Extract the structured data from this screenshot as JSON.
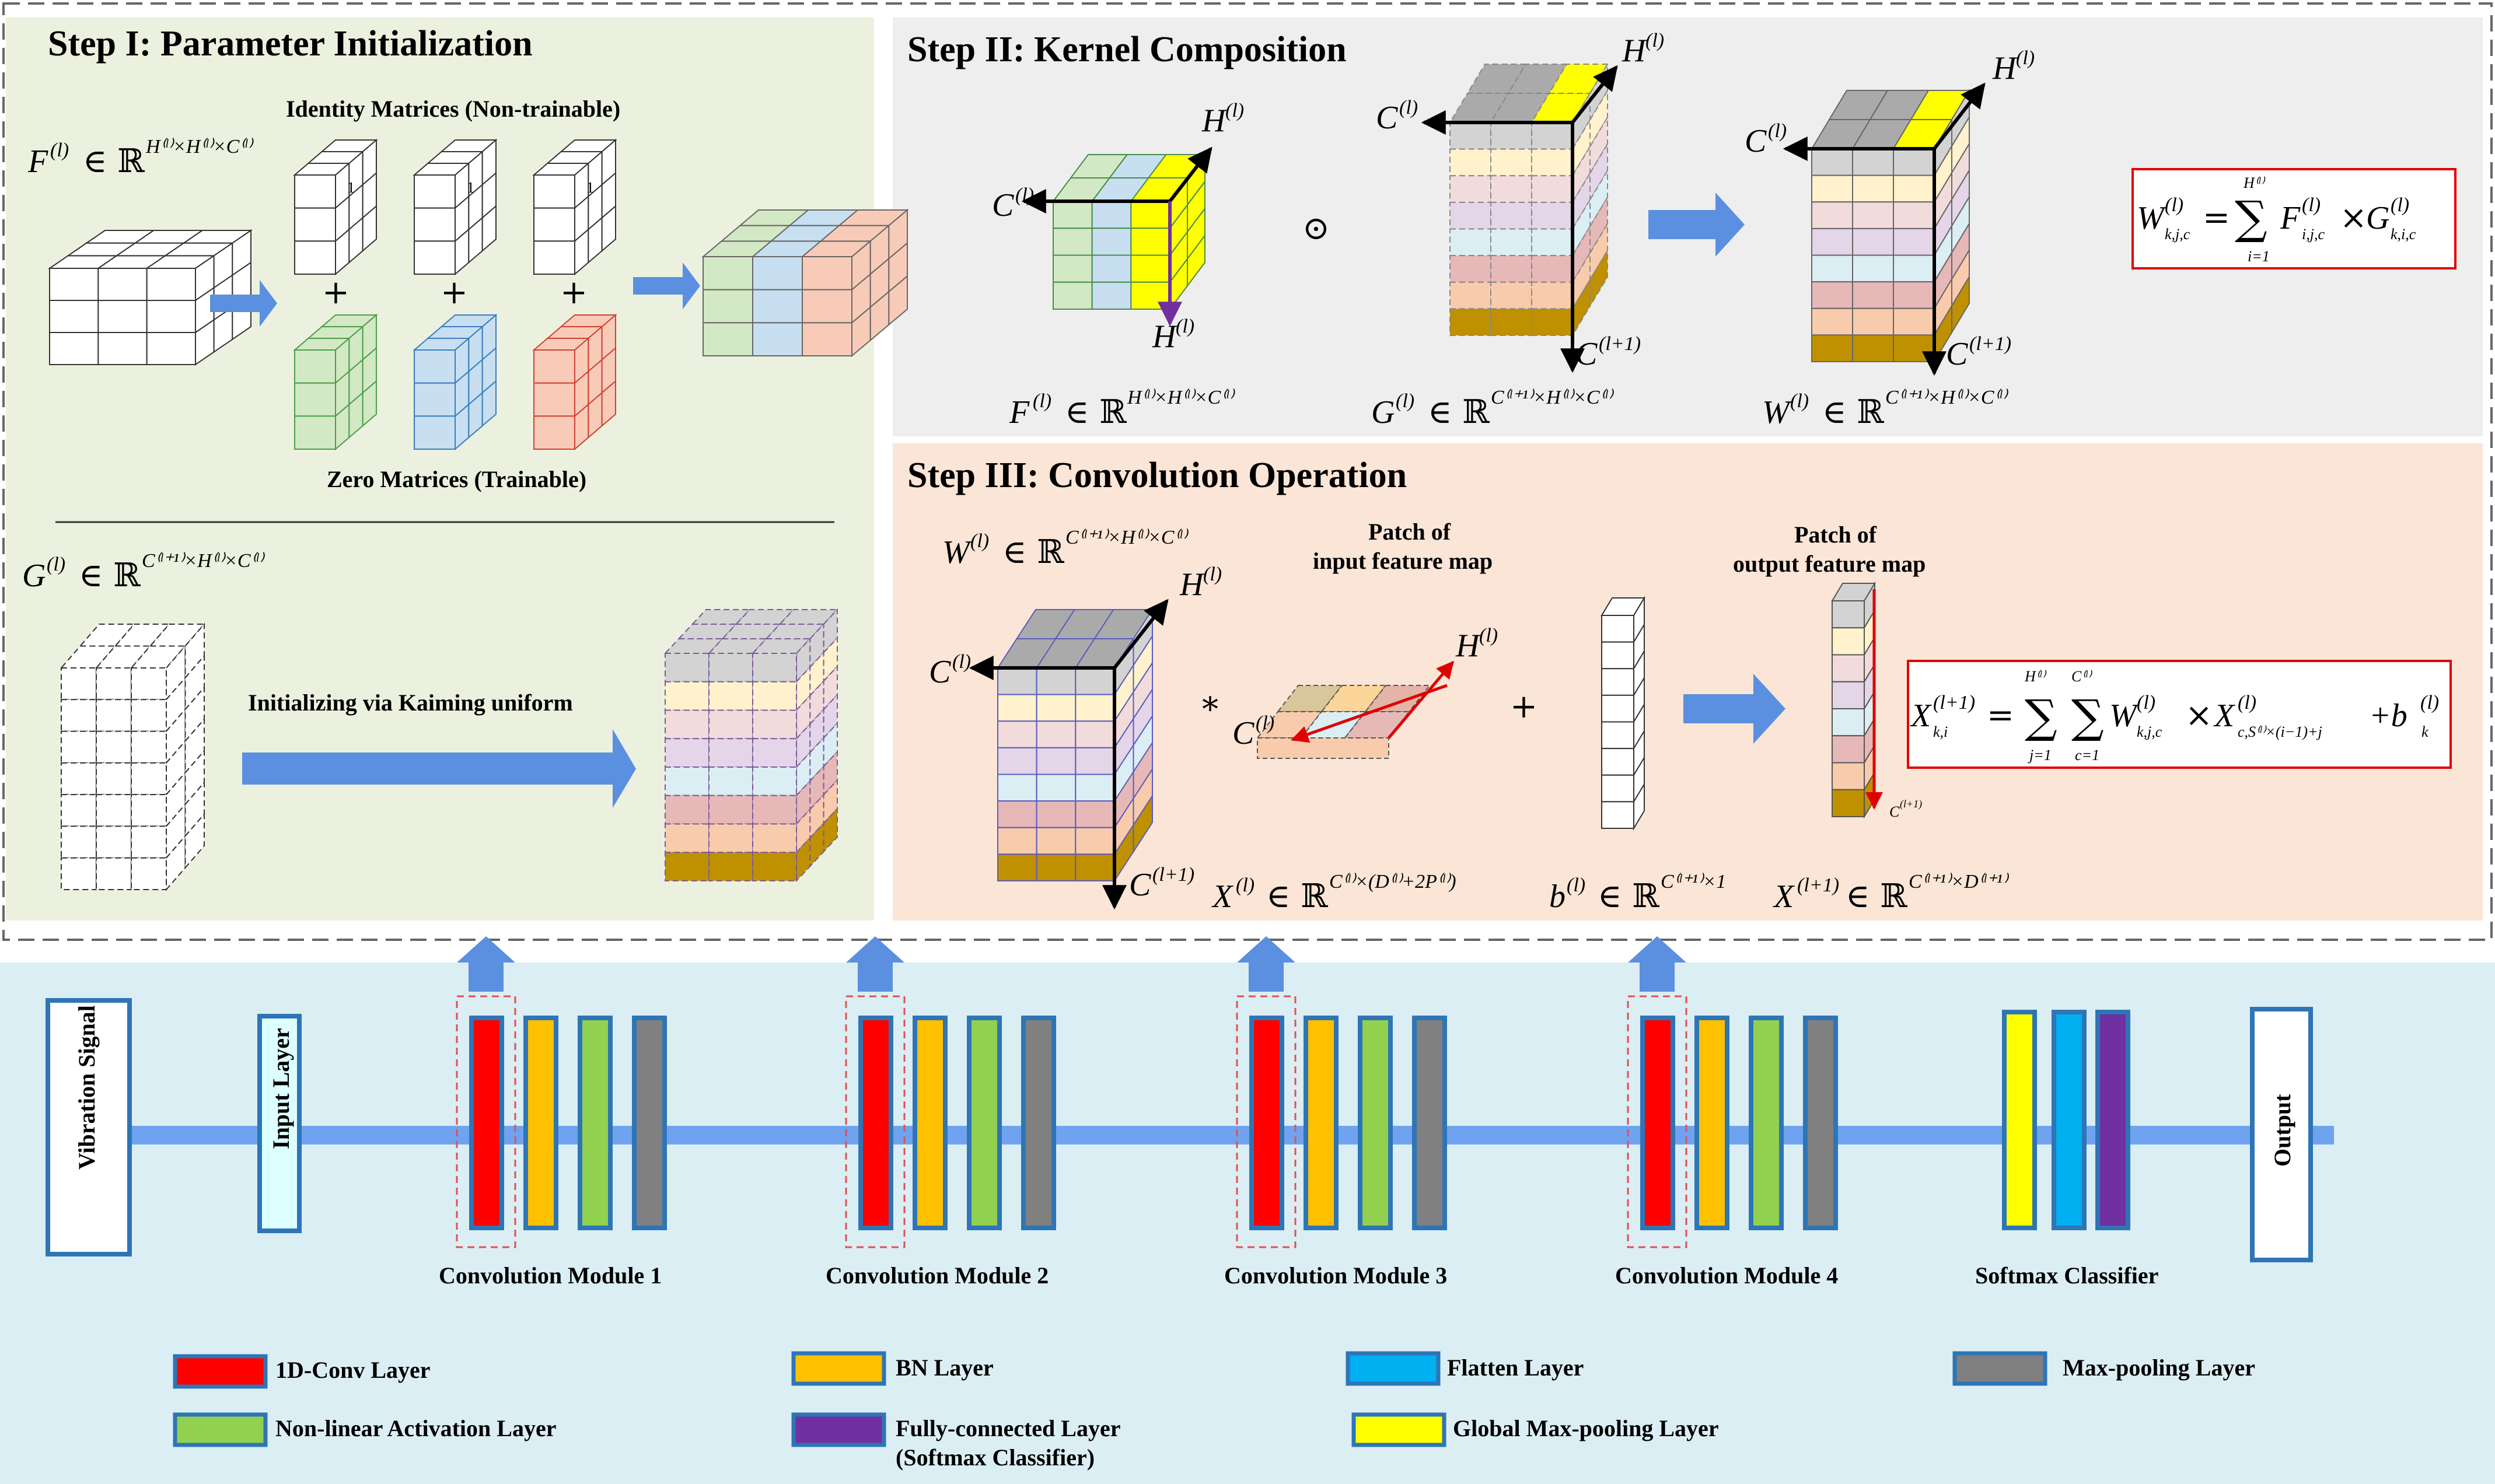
{
  "colors": {
    "stepI_bg": "#ebf1de",
    "stepII_bg": "#eeeeee",
    "stepIII_bg": "#fbe5d6",
    "bottom_bg": "#dbeef4",
    "arrow": "#5b8fe0",
    "conv": "#ff0000",
    "bn": "#ffc000",
    "act": "#92d050",
    "pool": "#808080",
    "flatten": "#00b0f0",
    "fc": "#7030a0",
    "gmp": "#ffff00",
    "input": "#ddffff",
    "border_blue": "#2e75b6",
    "formula_red": "#e00000"
  },
  "step1": {
    "title": "Step I: Parameter Initialization",
    "identity_label": "Identity Matrices (Non-trainable)",
    "zero_label": "Zero Matrices (Trainable)",
    "init_label": "Initializing  via Kaiming uniform",
    "plus": "+",
    "one": "1",
    "F_sym": "F",
    "G_sym": "G",
    "sup_l": "(l)",
    "in_R": "∈ ℝ",
    "F_dim": "H⁽ˡ⁾×H⁽ˡ⁾×C⁽ˡ⁾",
    "G_dim": "C⁽ˡ⁺¹⁾×H⁽ˡ⁾×C⁽ˡ⁾"
  },
  "step2": {
    "title": "Step II: Kernel Composition",
    "odot": "⊙",
    "axis_C": "C",
    "axis_H": "H",
    "axis_C1": "C",
    "sup_l": "(l)",
    "sup_l1": "(l+1)",
    "F_sym": "F",
    "G_sym": "G",
    "W_sym": "W",
    "in_R": "∈ ℝ",
    "F_dim": "H⁽ˡ⁾×H⁽ˡ⁾×C⁽ˡ⁾",
    "G_dim": "C⁽ˡ⁺¹⁾×H⁽ˡ⁾×C⁽ˡ⁾",
    "W_dim": "C⁽ˡ⁺¹⁾×H⁽ˡ⁾×C⁽ˡ⁾",
    "formula_lhs": "W",
    "formula_lhs_sub": "k,j,c",
    "formula_sum_top": "H⁽ˡ⁾",
    "formula_sum_bot": "i=1",
    "formula_rhs1": "F",
    "formula_rhs1_sub": "i,j,c",
    "formula_rhs2": "G",
    "formula_rhs2_sub": "k,i,c",
    "eq": "=",
    "sum": "∑",
    "times": "×"
  },
  "step3": {
    "title": "Step III: Convolution Operation",
    "patch_in_1": "Patch of",
    "patch_in_2": "input feature map",
    "patch_out_1": "Patch of",
    "patch_out_2": "output feature map",
    "star": "*",
    "plus": "+",
    "W_sym": "W",
    "X_sym": "X",
    "b_sym": "b",
    "sup_l": "(l)",
    "sup_l1": "(l+1)",
    "in_R": "∈ ℝ",
    "W_dim": "C⁽ˡ⁺¹⁾×H⁽ˡ⁾×C⁽ˡ⁾",
    "X_dim": "C⁽ˡ⁾×(D⁽ˡ⁾+2P⁽ˡ⁾)",
    "b_dim": "C⁽ˡ⁺¹⁾×1",
    "X1_dim": "C⁽ˡ⁺¹⁾×D⁽ˡ⁺¹⁾",
    "axis_C": "C",
    "axis_H": "H",
    "formula_lhs": "X",
    "formula_lhs_sub": "k,i",
    "formula_sum1_top": "H⁽ˡ⁾",
    "formula_sum1_bot": "j=1",
    "formula_sum2_top": "C⁽ˡ⁾",
    "formula_sum2_bot": "c=1",
    "formula_t1": "W",
    "formula_t1_sub": "k,j,c",
    "formula_t2": "X",
    "formula_t2_sub": "c,S⁽ˡ⁾×(i−1)+j",
    "formula_t3": "+b",
    "formula_t3_sub": "k",
    "eq": "=",
    "sum": "∑",
    "times": "×"
  },
  "network": {
    "input_signal": "Vibration Signal",
    "input_layer": "Input Layer",
    "output": "Output",
    "modules": [
      "Convolution Module 1",
      "Convolution Module 2",
      "Convolution Module 3",
      "Convolution Module 4"
    ],
    "classifier": "Softmax Classifier"
  },
  "legend": [
    {
      "label": "1D-Conv Layer",
      "color": "#ff0000"
    },
    {
      "label": "BN Layer",
      "color": "#ffc000"
    },
    {
      "label": "Flatten Layer",
      "color": "#00b0f0"
    },
    {
      "label": "Max-pooling Layer",
      "color": "#808080"
    },
    {
      "label": "Non-linear Activation Layer",
      "color": "#92d050"
    },
    {
      "label": "Fully-connected Layer",
      "label2": "(Softmax Classifier)",
      "color": "#7030a0"
    },
    {
      "label": "Global Max-pooling Layer",
      "color": "#ffff00"
    }
  ]
}
